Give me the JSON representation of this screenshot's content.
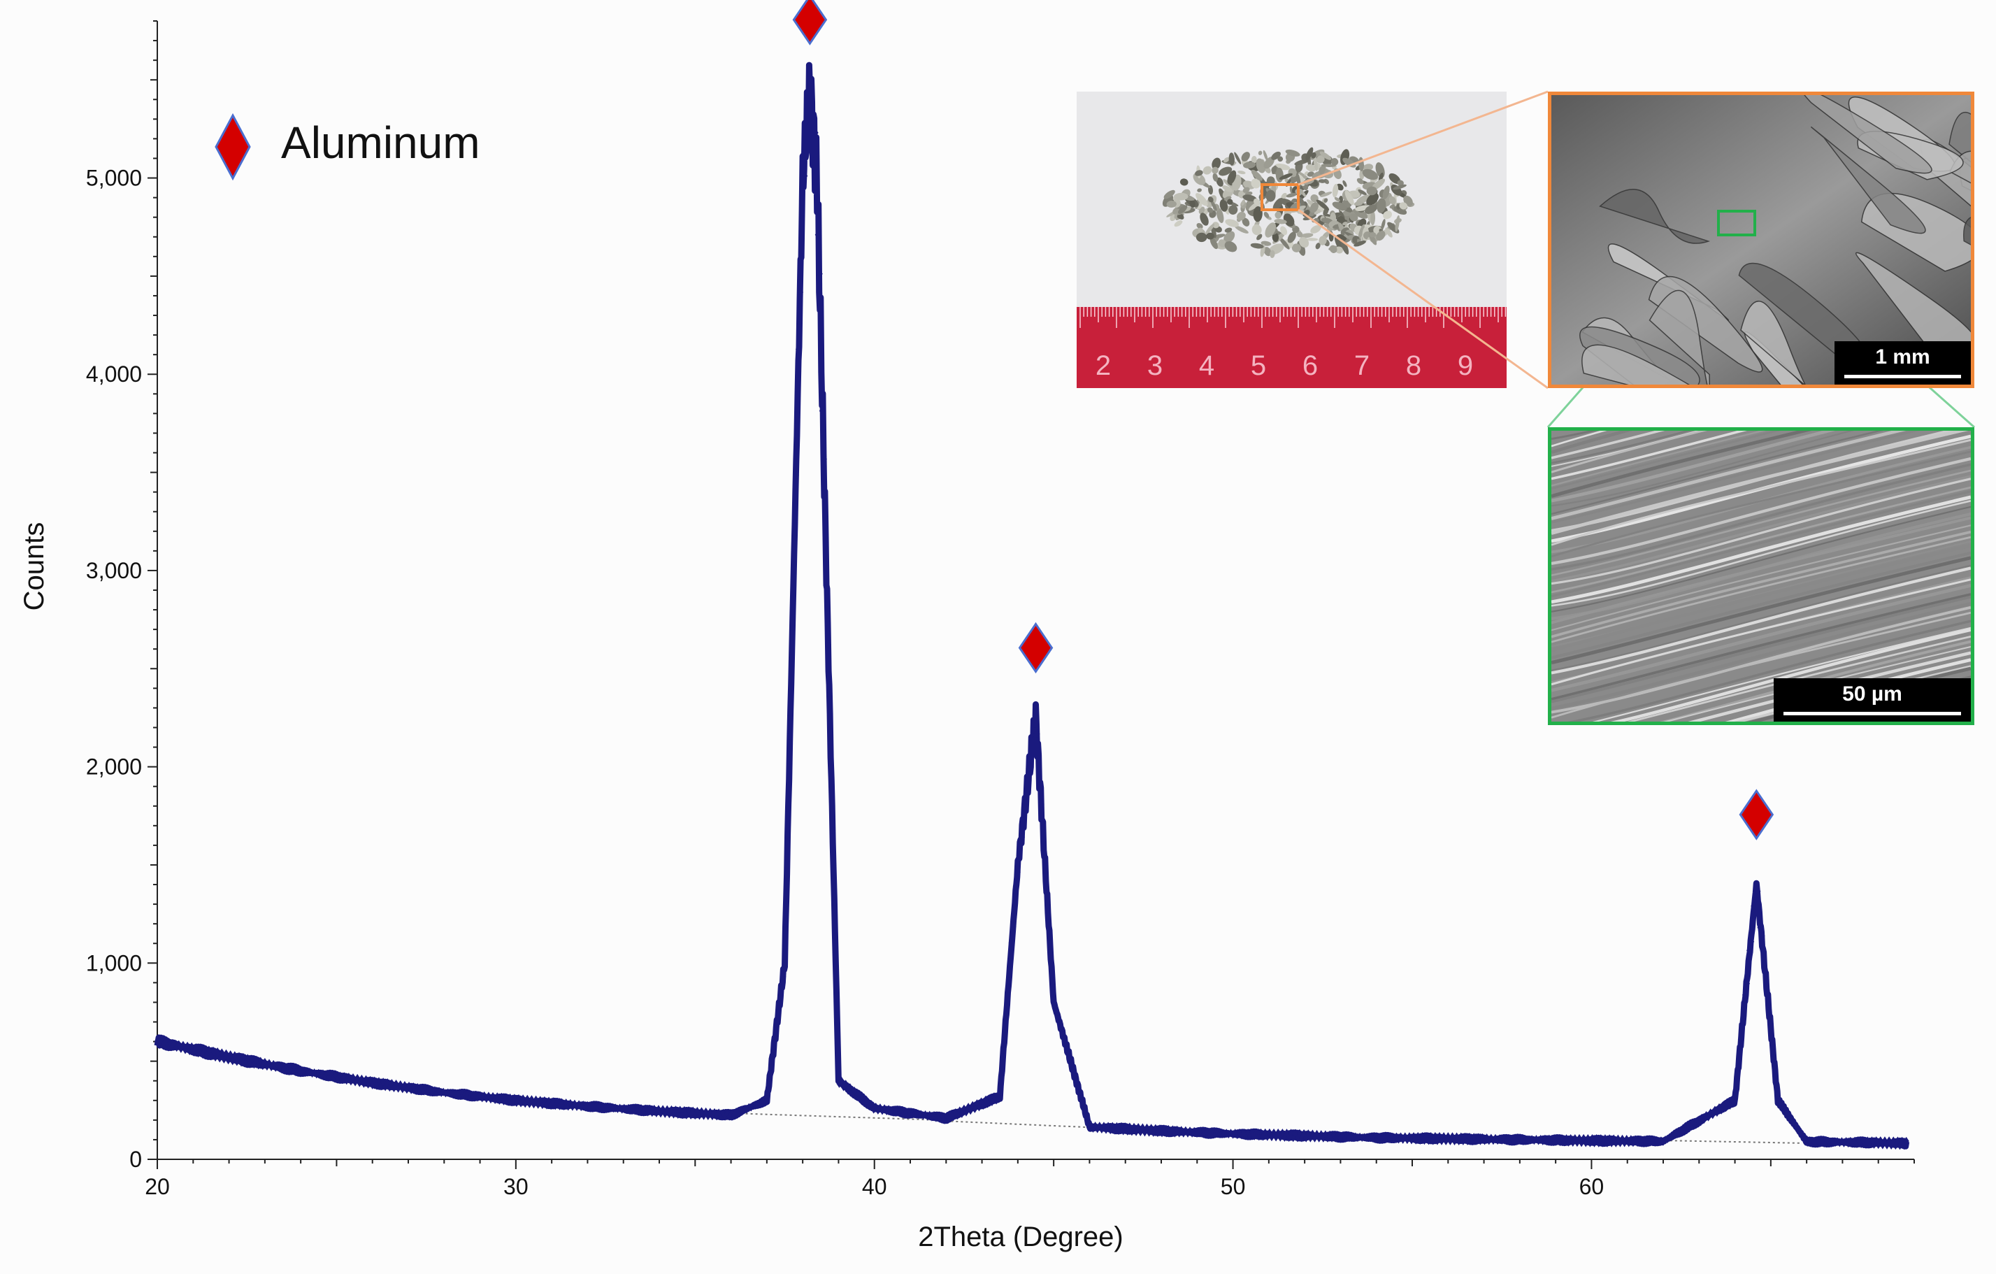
{
  "chart_data": {
    "type": "scatter",
    "xlabel": "2Theta (Degree)",
    "ylabel": "Counts",
    "xlim": [
      20,
      69
    ],
    "ylim": [
      0,
      5800
    ],
    "x_ticks": [
      "20",
      "30",
      "40",
      "50",
      "60"
    ],
    "y_ticks": [
      "0",
      "1,000",
      "2,000",
      "3,000",
      "4,000",
      "5,000"
    ],
    "legend": {
      "label": "Aluminum",
      "marker": "diamond",
      "placement": "top-left"
    },
    "peaks": [
      {
        "x": 38.2,
        "y": 5450,
        "label": "Aluminum"
      },
      {
        "x": 44.5,
        "y": 2250,
        "label": "Aluminum"
      },
      {
        "x": 64.6,
        "y": 1400,
        "label": "Aluminum"
      }
    ],
    "series": [
      {
        "name": "Aluminum",
        "x": [
          20,
          22,
          24,
          26,
          28,
          30,
          32,
          34,
          36,
          37,
          37.5,
          38,
          38.2,
          38.4,
          39,
          40,
          42,
          43.5,
          44,
          44.5,
          45,
          46,
          48,
          50,
          52,
          54,
          56,
          58,
          60,
          62,
          64,
          64.6,
          65.2,
          66,
          68,
          69
        ],
        "y": [
          600,
          520,
          450,
          390,
          340,
          300,
          270,
          245,
          225,
          300,
          1000,
          5000,
          5450,
          5000,
          400,
          260,
          210,
          320,
          1500,
          2250,
          800,
          165,
          145,
          130,
          120,
          110,
          105,
          100,
          95,
          92,
          300,
          1400,
          300,
          90,
          85,
          80
        ]
      }
    ],
    "marker_color": "#1a1a7e",
    "peak_marker_color": "#d40000"
  },
  "insets": {
    "ruler_numbers": [
      "2",
      "3",
      "4",
      "5",
      "6",
      "7",
      "8",
      "9"
    ],
    "scale_bar_1": "1 mm",
    "scale_bar_2": "50 µm",
    "frame_colors": {
      "photo_box": "#f0883a",
      "sem_box": "#22b04a"
    }
  }
}
